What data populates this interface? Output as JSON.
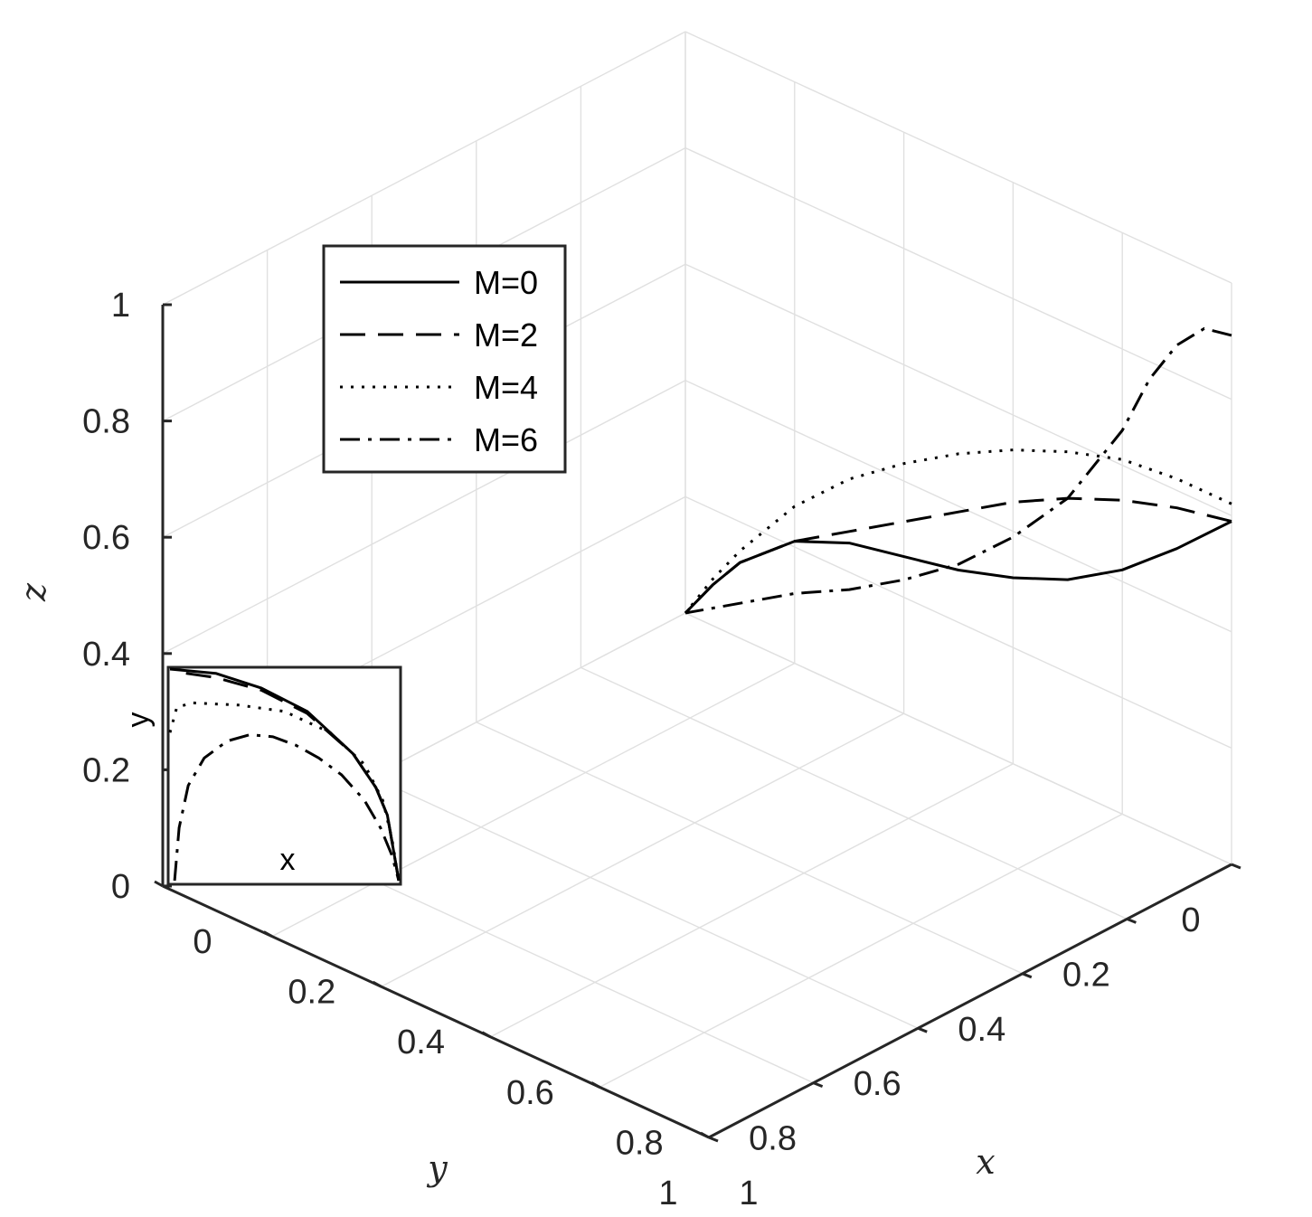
{
  "chart_data": {
    "type": "line",
    "dimensions": "3d",
    "title": "",
    "xlabel": "x",
    "ylabel": "y",
    "zlabel": "z",
    "xlim": [
      0,
      1
    ],
    "ylim": [
      0,
      1
    ],
    "zlim": [
      0,
      1
    ],
    "x_ticks": [
      "0",
      "0.2",
      "0.4",
      "0.6",
      "0.8",
      "1"
    ],
    "y_ticks": [
      "0",
      "0.2",
      "0.4",
      "0.6",
      "0.8",
      "1"
    ],
    "z_ticks": [
      "0",
      "0.2",
      "0.4",
      "0.6",
      "0.8",
      "1"
    ],
    "grid": true,
    "legend_position": "top-left",
    "series": [
      {
        "name": "M=0",
        "style": "solid",
        "points": [
          [
            1,
            0,
            0.59
          ],
          [
            0.9,
            0,
            0.5
          ],
          [
            0.8,
            0,
            0.42
          ],
          [
            0.7,
            0,
            0.36
          ],
          [
            0.6,
            0,
            0.32
          ],
          [
            0.5,
            0,
            0.29
          ],
          [
            0.4,
            0,
            0.27
          ],
          [
            0.3,
            0,
            0.25
          ],
          [
            0.2,
            0,
            0.21
          ],
          [
            0.1,
            0,
            0.13
          ],
          [
            0.05,
            0,
            0.07
          ],
          [
            0,
            0,
            0
          ]
        ]
      },
      {
        "name": "M=2",
        "style": "dashed",
        "points": [
          [
            1,
            0,
            0.59
          ],
          [
            0.9,
            0,
            0.57
          ],
          [
            0.8,
            0,
            0.54
          ],
          [
            0.7,
            0,
            0.5
          ],
          [
            0.6,
            0,
            0.45
          ],
          [
            0.5,
            0,
            0.39
          ],
          [
            0.4,
            0,
            0.33
          ],
          [
            0.3,
            0,
            0.27
          ],
          [
            0.2,
            0,
            0.21
          ],
          [
            0.1,
            0,
            0.13
          ],
          [
            0.05,
            0,
            0.07
          ],
          [
            0,
            0,
            0
          ]
        ]
      },
      {
        "name": "M=4",
        "style": "dotted",
        "points": [
          [
            1,
            0,
            0.62
          ],
          [
            0.9,
            0,
            0.62
          ],
          [
            0.8,
            0,
            0.61
          ],
          [
            0.7,
            0,
            0.58
          ],
          [
            0.6,
            0,
            0.54
          ],
          [
            0.5,
            0,
            0.49
          ],
          [
            0.4,
            0,
            0.43
          ],
          [
            0.3,
            0,
            0.36
          ],
          [
            0.2,
            0,
            0.27
          ],
          [
            0.1,
            0,
            0.15
          ],
          [
            0.05,
            0,
            0.08
          ],
          [
            0,
            0,
            0
          ]
        ]
      },
      {
        "name": "M=6",
        "style": "dashdot",
        "points": [
          [
            1,
            0,
            0.91
          ],
          [
            0.95,
            0,
            0.9
          ],
          [
            0.9,
            0,
            0.85
          ],
          [
            0.85,
            0,
            0.77
          ],
          [
            0.8,
            0,
            0.66
          ],
          [
            0.7,
            0,
            0.5
          ],
          [
            0.6,
            0,
            0.39
          ],
          [
            0.5,
            0,
            0.3
          ],
          [
            0.4,
            0,
            0.23
          ],
          [
            0.3,
            0,
            0.17
          ],
          [
            0.2,
            0,
            0.12
          ],
          [
            0.1,
            0,
            0.06
          ],
          [
            0,
            0,
            0
          ]
        ]
      }
    ],
    "inset": {
      "type": "line",
      "xlabel": "x",
      "ylabel": "y",
      "series": [
        {
          "name": "M=0",
          "style": "solid",
          "points": [
            [
              0,
              1
            ],
            [
              0.2,
              0.98
            ],
            [
              0.4,
              0.91
            ],
            [
              0.6,
              0.8
            ],
            [
              0.8,
              0.6
            ],
            [
              0.9,
              0.44
            ],
            [
              0.95,
              0.31
            ],
            [
              1,
              0
            ]
          ]
        },
        {
          "name": "M=2",
          "style": "dashed",
          "points": [
            [
              0.07,
              0.98
            ],
            [
              0.2,
              0.96
            ],
            [
              0.4,
              0.9
            ],
            [
              0.6,
              0.79
            ],
            [
              0.8,
              0.6
            ],
            [
              0.9,
              0.44
            ],
            [
              0.95,
              0.31
            ],
            [
              1,
              0
            ]
          ]
        },
        {
          "name": "M=4",
          "style": "dotted",
          "points": [
            [
              0,
              0.7
            ],
            [
              0.03,
              0.82
            ],
            [
              0.1,
              0.84
            ],
            [
              0.3,
              0.83
            ],
            [
              0.5,
              0.8
            ],
            [
              0.7,
              0.7
            ],
            [
              0.85,
              0.55
            ],
            [
              0.93,
              0.38
            ],
            [
              0.97,
              0.2
            ],
            [
              1,
              0
            ]
          ]
        },
        {
          "name": "M=6",
          "style": "dashdot",
          "points": [
            [
              0.02,
              0
            ],
            [
              0.04,
              0.25
            ],
            [
              0.08,
              0.45
            ],
            [
              0.15,
              0.58
            ],
            [
              0.25,
              0.66
            ],
            [
              0.35,
              0.69
            ],
            [
              0.45,
              0.68
            ],
            [
              0.55,
              0.64
            ],
            [
              0.65,
              0.58
            ],
            [
              0.75,
              0.5
            ],
            [
              0.85,
              0.38
            ],
            [
              0.92,
              0.25
            ],
            [
              0.97,
              0.12
            ],
            [
              1,
              0
            ]
          ]
        }
      ]
    }
  }
}
